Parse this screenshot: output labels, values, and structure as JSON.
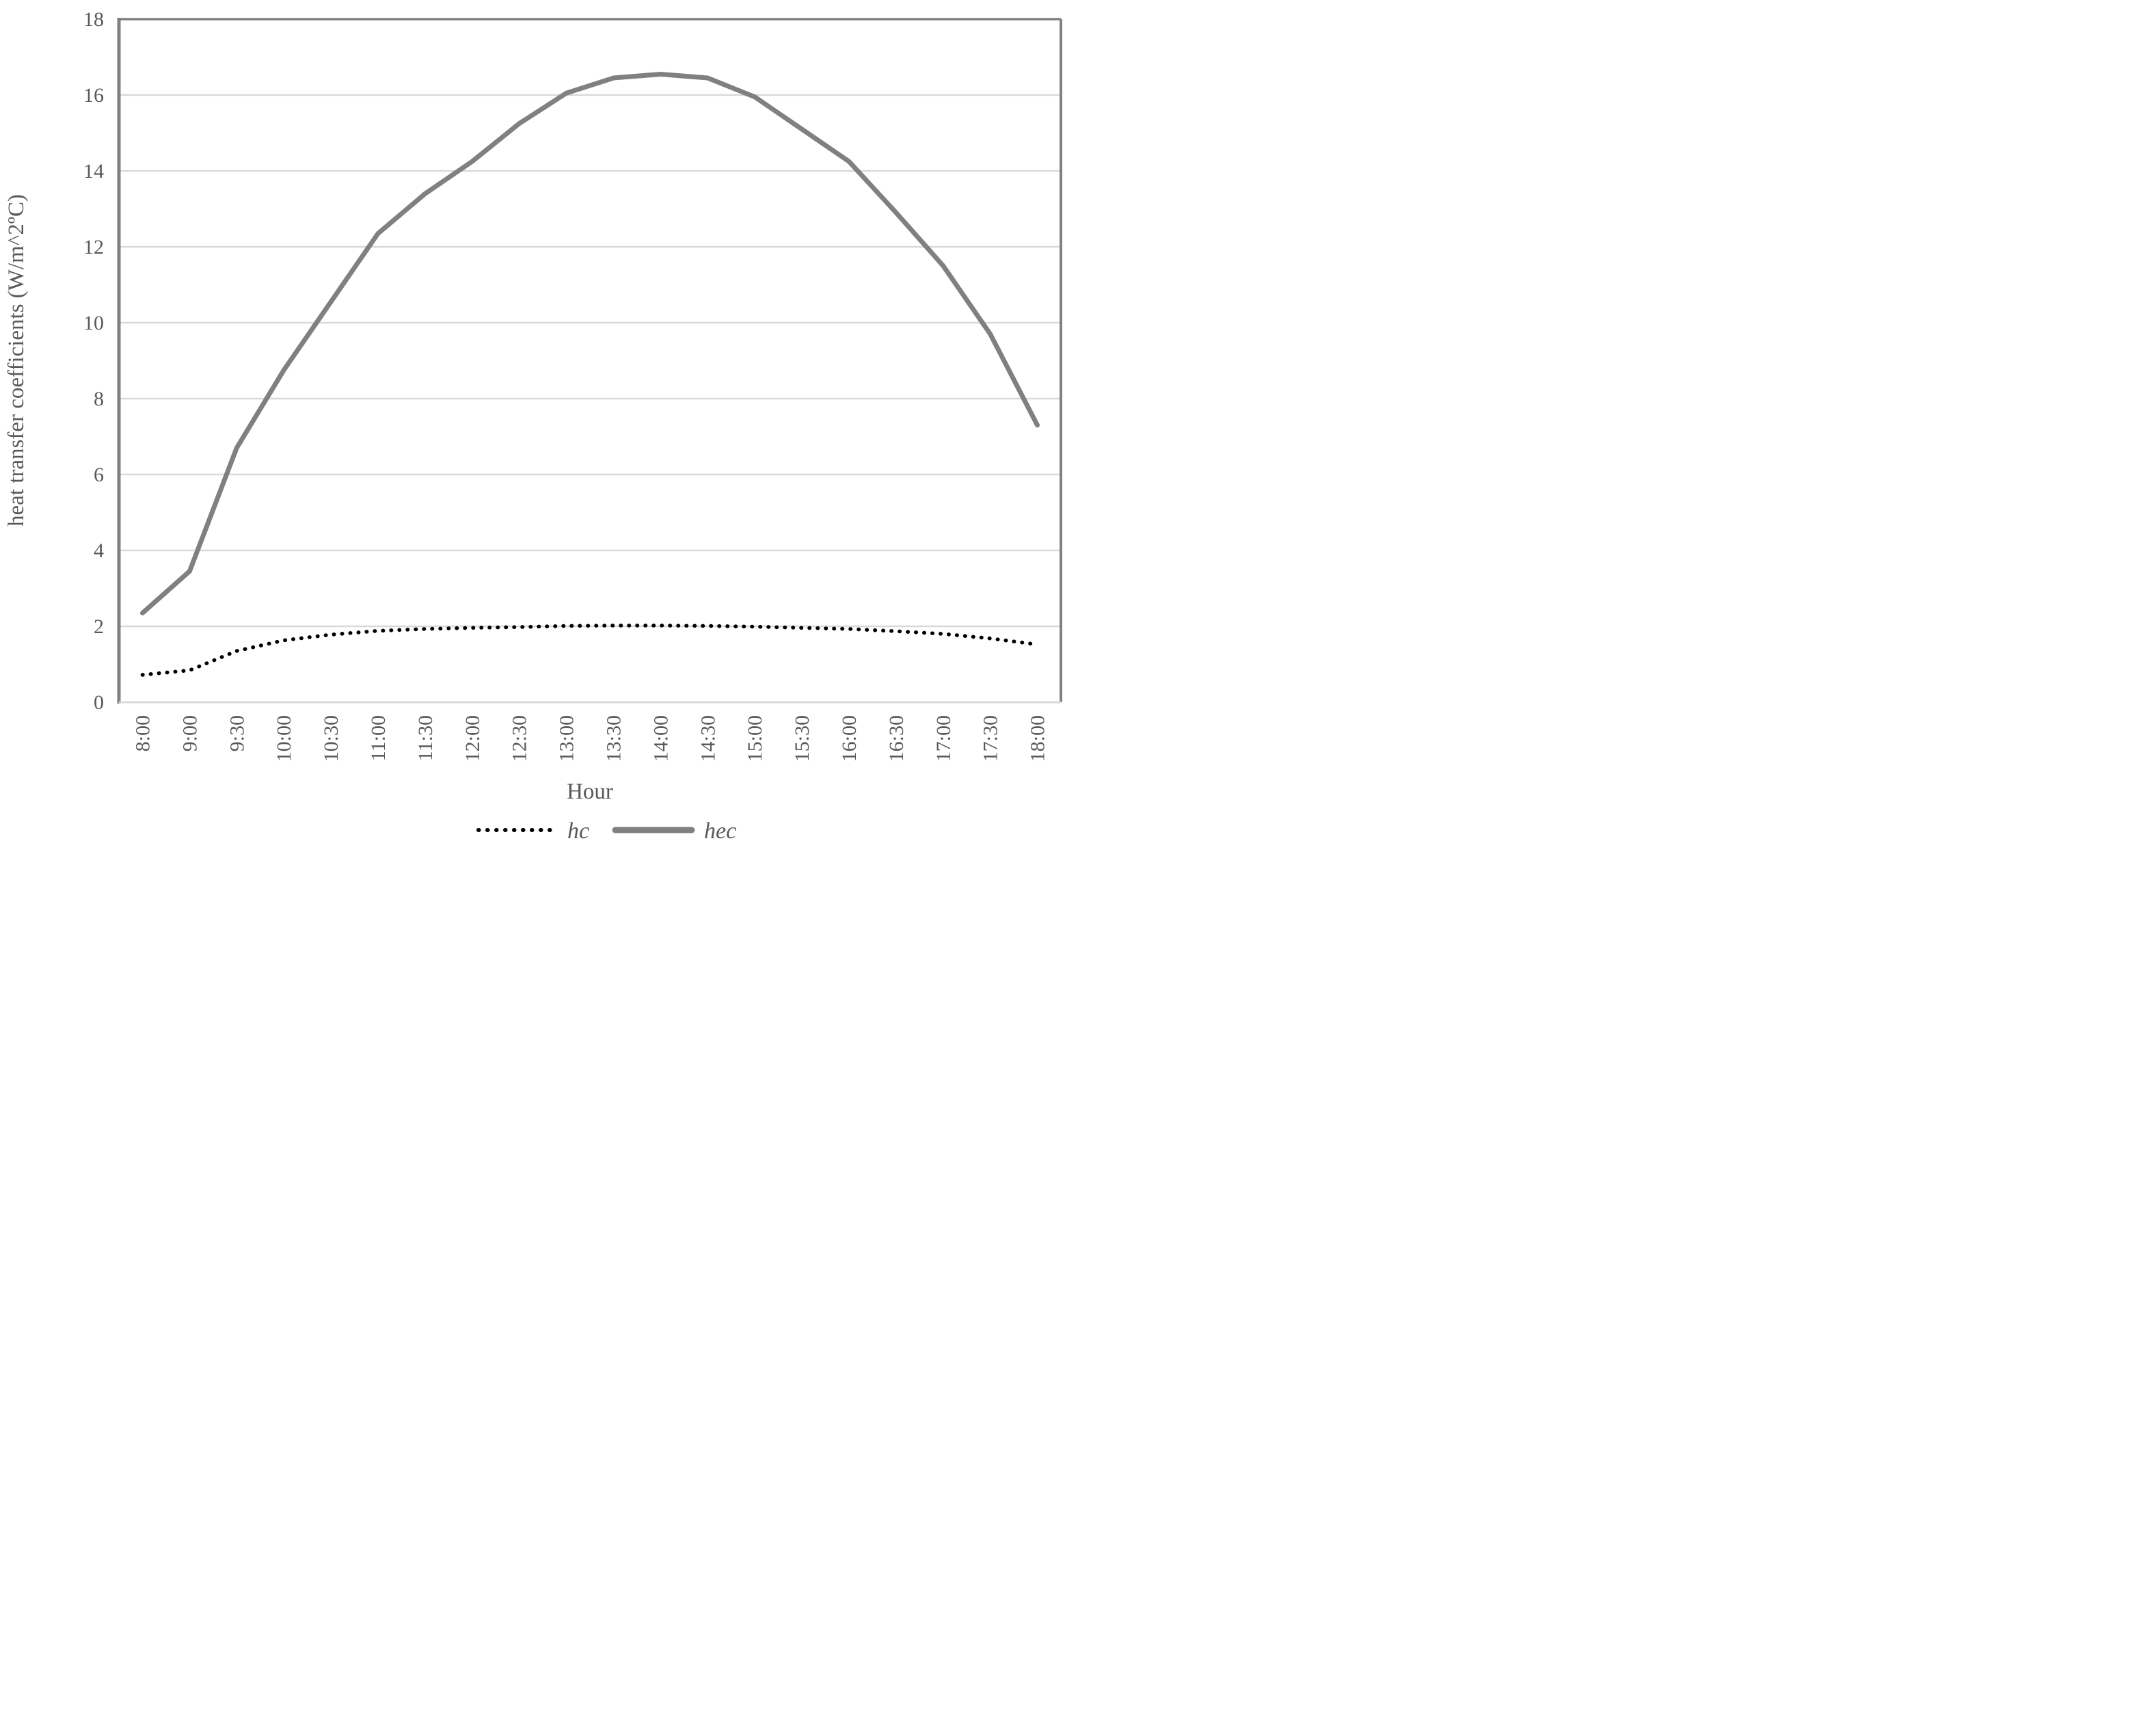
{
  "chart_data": {
    "type": "line",
    "title": "",
    "xlabel": "Hour",
    "ylabel": "heat transfer coefficients (W/m^2ºC)",
    "ylim": [
      0,
      18
    ],
    "ytick_step": 2,
    "ytick_labels": [
      "0",
      "2",
      "4",
      "6",
      "8",
      "10",
      "12",
      "14",
      "16",
      "18"
    ],
    "grid": true,
    "legend_position": "bottom-center",
    "categories": [
      "8:00",
      "9:00",
      "9:30",
      "10:00",
      "10:30",
      "11:00",
      "11:30",
      "12:00",
      "12:30",
      "13:00",
      "13:30",
      "14:00",
      "14:30",
      "15:00",
      "15:30",
      "16:00",
      "16:30",
      "17:00",
      "17:30",
      "18:00"
    ],
    "series": [
      {
        "name": "hc",
        "line_style": "dotted",
        "color": "#000000",
        "values": [
          0.72,
          0.84,
          1.35,
          1.63,
          1.78,
          1.88,
          1.93,
          1.96,
          1.98,
          2.01,
          2.02,
          2.02,
          2.01,
          1.99,
          1.96,
          1.93,
          1.87,
          1.8,
          1.68,
          1.52
        ]
      },
      {
        "name": "hec",
        "line_style": "solid",
        "color": "#808080",
        "values": [
          2.35,
          3.45,
          6.7,
          8.75,
          10.55,
          12.35,
          13.4,
          14.25,
          15.25,
          16.05,
          16.45,
          16.55,
          16.45,
          15.95,
          15.1,
          14.25,
          12.9,
          11.5,
          9.7,
          7.3
        ]
      }
    ]
  },
  "colors": {
    "gridline": "#d9d9d9",
    "plot_border": "#808080",
    "bottom_axis": "#d9d9d9",
    "tick_text": "#595959",
    "background": "#ffffff"
  }
}
